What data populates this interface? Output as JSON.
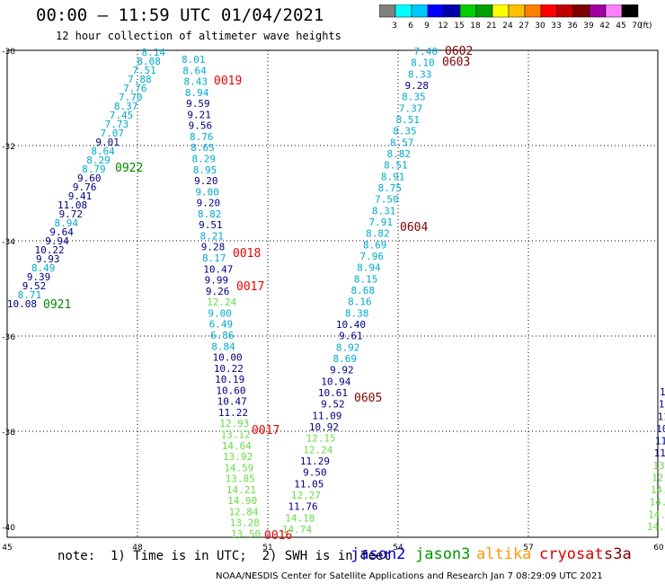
{
  "title": "00:00 – 11:59 UTC 01/04/2021",
  "subtitle": "12 hour collection of altimeter wave heights",
  "legend": {
    "unit": "(ft)",
    "labels": [
      "3",
      "6",
      "9",
      "12",
      "15",
      "18",
      "21",
      "24",
      "27",
      "30",
      "33",
      "36",
      "39",
      "42",
      "45",
      "70"
    ],
    "colors": [
      "#808080",
      "#00ffff",
      "#00c8ff",
      "#0000ff",
      "#0000aa",
      "#00d000",
      "#00a000",
      "#ffff00",
      "#ffc000",
      "#ff8000",
      "#ff0000",
      "#c00000",
      "#800000",
      "#a000a0",
      "#ff80ff",
      "#000000"
    ]
  },
  "note": "note:  1) Time is in UTC;  2) SWH is in feet",
  "satellites": [
    {
      "name": "jason2",
      "color": "#0000cc"
    },
    {
      "name": "jason3",
      "color": "#009900"
    },
    {
      "name": "altika",
      "color": "#ff9900"
    },
    {
      "name": "cryosat",
      "color": "#dd0000"
    },
    {
      "name": "s3a",
      "color": "#800000"
    }
  ],
  "footer": "NOAA/NESDIS Center for Satellite Applications and Research   Jan  7 08:29:09 UTC 2021",
  "map": {
    "x_ticks": [
      "45",
      "48",
      "51",
      "54",
      "57",
      "60"
    ],
    "y_ticks": [
      "-30",
      "-32",
      "-34",
      "-36",
      "-38",
      "-40"
    ],
    "tracks": [
      {
        "labels": [
          {
            "t": "0922",
            "c": "#008800",
            "s": 1
          },
          {
            "t": "0921",
            "c": "#008800",
            "s": 1
          },
          {
            "t": "8.14",
            "c": "#00aacc"
          },
          {
            "t": "8.08",
            "c": "#00aacc"
          },
          {
            "t": "7.51",
            "c": "#00aacc"
          },
          {
            "t": "7.88",
            "c": "#00aacc"
          },
          {
            "t": "7.76",
            "c": "#00aacc"
          },
          {
            "t": "7.70",
            "c": "#00aacc"
          },
          {
            "t": "8.37",
            "c": "#00aacc"
          },
          {
            "t": "7.45",
            "c": "#00aacc"
          },
          {
            "t": "7.73",
            "c": "#00aacc"
          },
          {
            "t": "7.07",
            "c": "#00aacc"
          },
          {
            "t": "9.01",
            "c": "#000080"
          },
          {
            "t": "8.64",
            "c": "#00aacc"
          },
          {
            "t": "8.29",
            "c": "#00aacc"
          },
          {
            "t": "8.79",
            "c": "#00aacc"
          },
          {
            "t": "9.60",
            "c": "#000080"
          },
          {
            "t": "9.76",
            "c": "#000080"
          },
          {
            "t": "9.41",
            "c": "#000080"
          },
          {
            "t": "11.08",
            "c": "#000080"
          },
          {
            "t": "9.72",
            "c": "#000080"
          },
          {
            "t": "8.94",
            "c": "#00aacc"
          },
          {
            "t": "9.64",
            "c": "#000080"
          },
          {
            "t": "9.94",
            "c": "#000080"
          },
          {
            "t": "10.22",
            "c": "#000080"
          },
          {
            "t": "9.93",
            "c": "#000080"
          },
          {
            "t": "8.49",
            "c": "#00aacc"
          },
          {
            "t": "9.39",
            "c": "#000080"
          },
          {
            "t": "9.52",
            "c": "#000080"
          },
          {
            "t": "8.71",
            "c": "#00aacc"
          },
          {
            "t": "10.08",
            "c": "#000080"
          }
        ]
      },
      {
        "labels": [
          {
            "t": "0019",
            "c": "#ee0000",
            "s": 1
          },
          {
            "t": "0018",
            "c": "#ee0000",
            "s": 1
          },
          {
            "t": "0017",
            "c": "#ee0000",
            "s": 1
          },
          {
            "t": "0017",
            "c": "#ee0000",
            "s": 1
          },
          {
            "t": "0016",
            "c": "#ee0000",
            "s": 1
          },
          {
            "t": "8.01",
            "c": "#00aacc"
          },
          {
            "t": "8.64",
            "c": "#00aacc"
          },
          {
            "t": "8.43",
            "c": "#00aacc"
          },
          {
            "t": "8.94",
            "c": "#00aacc"
          },
          {
            "t": "9.59",
            "c": "#000080"
          },
          {
            "t": "9.21",
            "c": "#000080"
          },
          {
            "t": "9.56",
            "c": "#000080"
          },
          {
            "t": "8.76",
            "c": "#00aacc"
          },
          {
            "t": "8.65",
            "c": "#00aacc"
          },
          {
            "t": "8.29",
            "c": "#00aacc"
          },
          {
            "t": "8.95",
            "c": "#00aacc"
          },
          {
            "t": "9.20",
            "c": "#000080"
          },
          {
            "t": "9.00",
            "c": "#00aacc"
          },
          {
            "t": "9.20",
            "c": "#000080"
          },
          {
            "t": "8.82",
            "c": "#00aacc"
          },
          {
            "t": "9.51",
            "c": "#000080"
          },
          {
            "t": "8.21",
            "c": "#00aacc"
          },
          {
            "t": "9.28",
            "c": "#000080"
          },
          {
            "t": "8.17",
            "c": "#00aacc"
          },
          {
            "t": "10.47",
            "c": "#000080"
          },
          {
            "t": "9.99",
            "c": "#000080"
          },
          {
            "t": "9.26",
            "c": "#000080"
          },
          {
            "t": "12.24",
            "c": "#66dd44"
          },
          {
            "t": "9.00",
            "c": "#00aacc"
          },
          {
            "t": "6.49",
            "c": "#00aacc"
          },
          {
            "t": "6.86",
            "c": "#00aacc"
          },
          {
            "t": "8.84",
            "c": "#00aacc"
          },
          {
            "t": "10.00",
            "c": "#000080"
          },
          {
            "t": "10.22",
            "c": "#000080"
          },
          {
            "t": "10.19",
            "c": "#000080"
          },
          {
            "t": "10.60",
            "c": "#000080"
          },
          {
            "t": "10.47",
            "c": "#000080"
          },
          {
            "t": "11.22",
            "c": "#000080"
          },
          {
            "t": "12.93",
            "c": "#66dd44"
          },
          {
            "t": "13.12",
            "c": "#66dd44"
          },
          {
            "t": "14.64",
            "c": "#66dd44"
          },
          {
            "t": "13.92",
            "c": "#66dd44"
          },
          {
            "t": "14.59",
            "c": "#66dd44"
          },
          {
            "t": "13.85",
            "c": "#66dd44"
          },
          {
            "t": "14.21",
            "c": "#66dd44"
          },
          {
            "t": "14.90",
            "c": "#66dd44"
          },
          {
            "t": "12.84",
            "c": "#66dd44"
          },
          {
            "t": "13.28",
            "c": "#66dd44"
          },
          {
            "t": "13.50",
            "c": "#66dd44"
          }
        ]
      },
      {
        "labels": [
          {
            "t": "0602",
            "c": "#800000",
            "s": 1
          },
          {
            "t": "0603",
            "c": "#800000",
            "s": 1
          },
          {
            "t": "0604",
            "c": "#800000",
            "s": 1
          },
          {
            "t": "0605",
            "c": "#800000",
            "s": 1
          },
          {
            "t": "7.40",
            "c": "#00aacc"
          },
          {
            "t": "8.10",
            "c": "#00aacc"
          },
          {
            "t": "8.33",
            "c": "#00aacc"
          },
          {
            "t": "9.28",
            "c": "#000080"
          },
          {
            "t": "8.35",
            "c": "#00aacc"
          },
          {
            "t": "7.37",
            "c": "#00aacc"
          },
          {
            "t": "8.51",
            "c": "#00aacc"
          },
          {
            "t": "8.35",
            "c": "#00aacc"
          },
          {
            "t": "8.57",
            "c": "#00aacc"
          },
          {
            "t": "8.82",
            "c": "#00aacc"
          },
          {
            "t": "8.51",
            "c": "#00aacc"
          },
          {
            "t": "8.91",
            "c": "#00aacc"
          },
          {
            "t": "8.75",
            "c": "#00aacc"
          },
          {
            "t": "7.50",
            "c": "#00aacc"
          },
          {
            "t": "8.31",
            "c": "#00aacc"
          },
          {
            "t": "7.91",
            "c": "#00aacc"
          },
          {
            "t": "8.82",
            "c": "#00aacc"
          },
          {
            "t": "8.69",
            "c": "#00aacc"
          },
          {
            "t": "7.96",
            "c": "#00aacc"
          },
          {
            "t": "8.94",
            "c": "#00aacc"
          },
          {
            "t": "8.15",
            "c": "#00aacc"
          },
          {
            "t": "8.68",
            "c": "#00aacc"
          },
          {
            "t": "8.16",
            "c": "#00aacc"
          },
          {
            "t": "8.38",
            "c": "#00aacc"
          },
          {
            "t": "10.40",
            "c": "#000080"
          },
          {
            "t": "9.61",
            "c": "#000080"
          },
          {
            "t": "8.92",
            "c": "#00aacc"
          },
          {
            "t": "8.69",
            "c": "#00aacc"
          },
          {
            "t": "9.92",
            "c": "#000080"
          },
          {
            "t": "10.94",
            "c": "#000080"
          },
          {
            "t": "10.61",
            "c": "#000080"
          },
          {
            "t": "9.52",
            "c": "#000080"
          },
          {
            "t": "11.09",
            "c": "#000080"
          },
          {
            "t": "10.92",
            "c": "#000080"
          },
          {
            "t": "12.15",
            "c": "#66dd44"
          },
          {
            "t": "12.24",
            "c": "#66dd44"
          },
          {
            "t": "11.29",
            "c": "#000080"
          },
          {
            "t": "9.50",
            "c": "#000080"
          },
          {
            "t": "11.05",
            "c": "#000080"
          },
          {
            "t": "12.27",
            "c": "#66dd44"
          },
          {
            "t": "11.76",
            "c": "#000080"
          },
          {
            "t": "14.18",
            "c": "#66dd44"
          },
          {
            "t": "14.74",
            "c": "#66dd44"
          }
        ]
      },
      {
        "labels": [
          {
            "t": "1",
            "c": "#000080"
          },
          {
            "t": "11",
            "c": "#000080"
          },
          {
            "t": "11",
            "c": "#000080"
          },
          {
            "t": "10",
            "c": "#000080"
          },
          {
            "t": "11.",
            "c": "#000080"
          },
          {
            "t": "11.",
            "c": "#000080"
          },
          {
            "t": "13.",
            "c": "#66dd44"
          },
          {
            "t": "12.",
            "c": "#66dd44"
          },
          {
            "t": "14.",
            "c": "#66dd44"
          },
          {
            "t": "14.",
            "c": "#66dd44"
          },
          {
            "t": "14.6",
            "c": "#66dd44"
          },
          {
            "t": "14.9",
            "c": "#66dd44"
          }
        ]
      }
    ]
  }
}
